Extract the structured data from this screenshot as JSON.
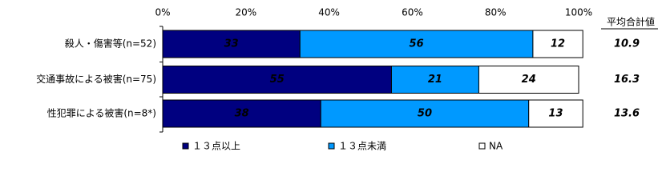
{
  "chart_data": {
    "type": "stacked-bar-horizontal",
    "categories": [
      "殺人・傷害等(n=52)",
      "交通事故による被害(n=75)",
      "性犯罪による被害(n=8*)"
    ],
    "series": [
      {
        "name": "１３点以上",
        "color": "#000080",
        "label_color": "#ffffff",
        "values": [
          33,
          55,
          38
        ]
      },
      {
        "name": "１３点未満",
        "color": "#0099ff",
        "label_color": "#ffffff",
        "values": [
          56,
          21,
          50
        ]
      },
      {
        "name": "NA",
        "color": "#ffffff",
        "label_color": "#000000",
        "values": [
          12,
          24,
          13
        ]
      }
    ],
    "xlim": [
      0,
      100
    ],
    "xticks": [
      {
        "value": 0,
        "label": "0%"
      },
      {
        "value": 20,
        "label": "20%"
      },
      {
        "value": 40,
        "label": "40%"
      },
      {
        "value": 60,
        "label": "60%"
      },
      {
        "value": 80,
        "label": "80%"
      },
      {
        "value": 100,
        "label": "100%"
      }
    ],
    "average": {
      "title": "平均合計値",
      "values": [
        10.9,
        16.3,
        13.6
      ]
    }
  }
}
